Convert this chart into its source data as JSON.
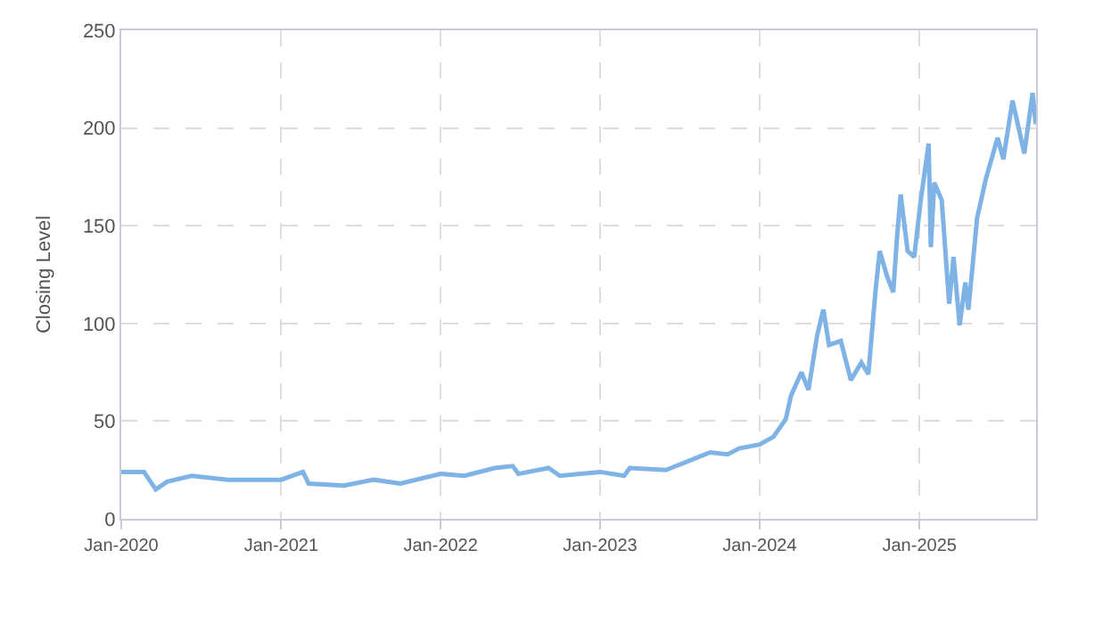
{
  "chart_data": {
    "type": "line",
    "ylabel": "Closing Level",
    "x": [
      "2020-01-01",
      "2020-02-22",
      "2020-03-20",
      "2020-04-15",
      "2020-06-10",
      "2020-09-01",
      "2021-01-01",
      "2021-02-20",
      "2021-03-05",
      "2021-05-25",
      "2021-08-01",
      "2021-10-01",
      "2022-01-01",
      "2022-02-25",
      "2022-05-05",
      "2022-06-15",
      "2022-06-28",
      "2022-09-05",
      "2022-10-01",
      "2023-01-01",
      "2023-02-25",
      "2023-03-10",
      "2023-06-01",
      "2023-09-10",
      "2023-10-20",
      "2023-11-15",
      "2024-01-01",
      "2024-02-02",
      "2024-03-01",
      "2024-03-13",
      "2024-04-06",
      "2024-04-22",
      "2024-05-12",
      "2024-05-26",
      "2024-06-08",
      "2024-07-05",
      "2024-07-28",
      "2024-08-21",
      "2024-09-06",
      "2024-09-23",
      "2024-10-02",
      "2024-10-19",
      "2024-11-02",
      "2024-11-11",
      "2024-11-19",
      "2024-12-05",
      "2024-12-20",
      "2025-01-04",
      "2025-01-22",
      "2025-01-27",
      "2025-02-04",
      "2025-02-21",
      "2025-03-10",
      "2025-03-20",
      "2025-04-03",
      "2025-04-16",
      "2025-04-23",
      "2025-05-13",
      "2025-06-02",
      "2025-06-29",
      "2025-07-12",
      "2025-08-02",
      "2025-08-29",
      "2025-09-17",
      "2025-09-24"
    ],
    "series": [
      {
        "color": "#7fb3e6",
        "values": [
          24,
          24,
          15,
          19,
          22,
          20,
          20,
          24,
          18,
          17,
          20,
          18,
          23,
          22,
          26,
          27,
          23,
          26,
          22,
          24,
          22,
          26,
          25,
          34,
          33,
          36,
          38,
          42,
          51,
          63,
          75,
          66,
          94,
          107,
          89,
          91,
          71,
          80,
          74,
          118,
          137,
          124,
          116,
          145,
          166,
          137,
          134,
          163,
          192,
          139,
          172,
          163,
          110,
          134,
          99,
          121,
          107,
          154,
          174,
          195,
          184,
          214,
          187,
          218,
          202
        ]
      }
    ],
    "xlim": [
      "2020-01-01",
      "2025-09-25"
    ],
    "xticks": [
      {
        "value": "2020-01-01",
        "label": "Jan-2020"
      },
      {
        "value": "2021-01-01",
        "label": "Jan-2021"
      },
      {
        "value": "2022-01-01",
        "label": "Jan-2022"
      },
      {
        "value": "2023-01-01",
        "label": "Jan-2023"
      },
      {
        "value": "2024-01-01",
        "label": "Jan-2024"
      },
      {
        "value": "2025-01-01",
        "label": "Jan-2025"
      }
    ],
    "ylim": [
      0,
      250
    ],
    "yticks": [
      0,
      50,
      100,
      150,
      200,
      250
    ],
    "grid": true,
    "marker": "none",
    "line_style": "solid"
  }
}
